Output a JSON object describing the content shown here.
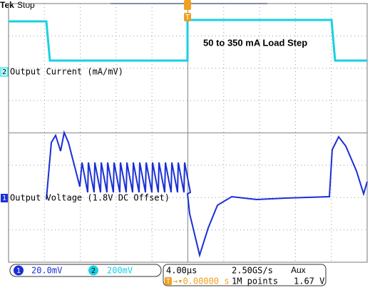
{
  "header": {
    "brand": "Tek",
    "state": "Stop"
  },
  "annotations": {
    "load_step": "50 to 350 mA Load Step",
    "ch2_marker": "2",
    "ch2_label": "Output Current (mA/mV)",
    "ch1_marker": "1",
    "ch1_label": "Output Voltage (1.8V DC Offset)",
    "trigger_marker": "T"
  },
  "status": {
    "ch1_number": "1",
    "ch1_scale": "20.0mV",
    "ch2_number": "2",
    "ch2_scale": "200mV",
    "timebase": "4.00µs",
    "sample_rate": "2.50GS/s",
    "trigger_source": "Aux",
    "trigger_pos_marker": "T",
    "trigger_position": "→▾0.00000 s",
    "record_length": "1M points",
    "trigger_level": "1.67 V"
  }
}
